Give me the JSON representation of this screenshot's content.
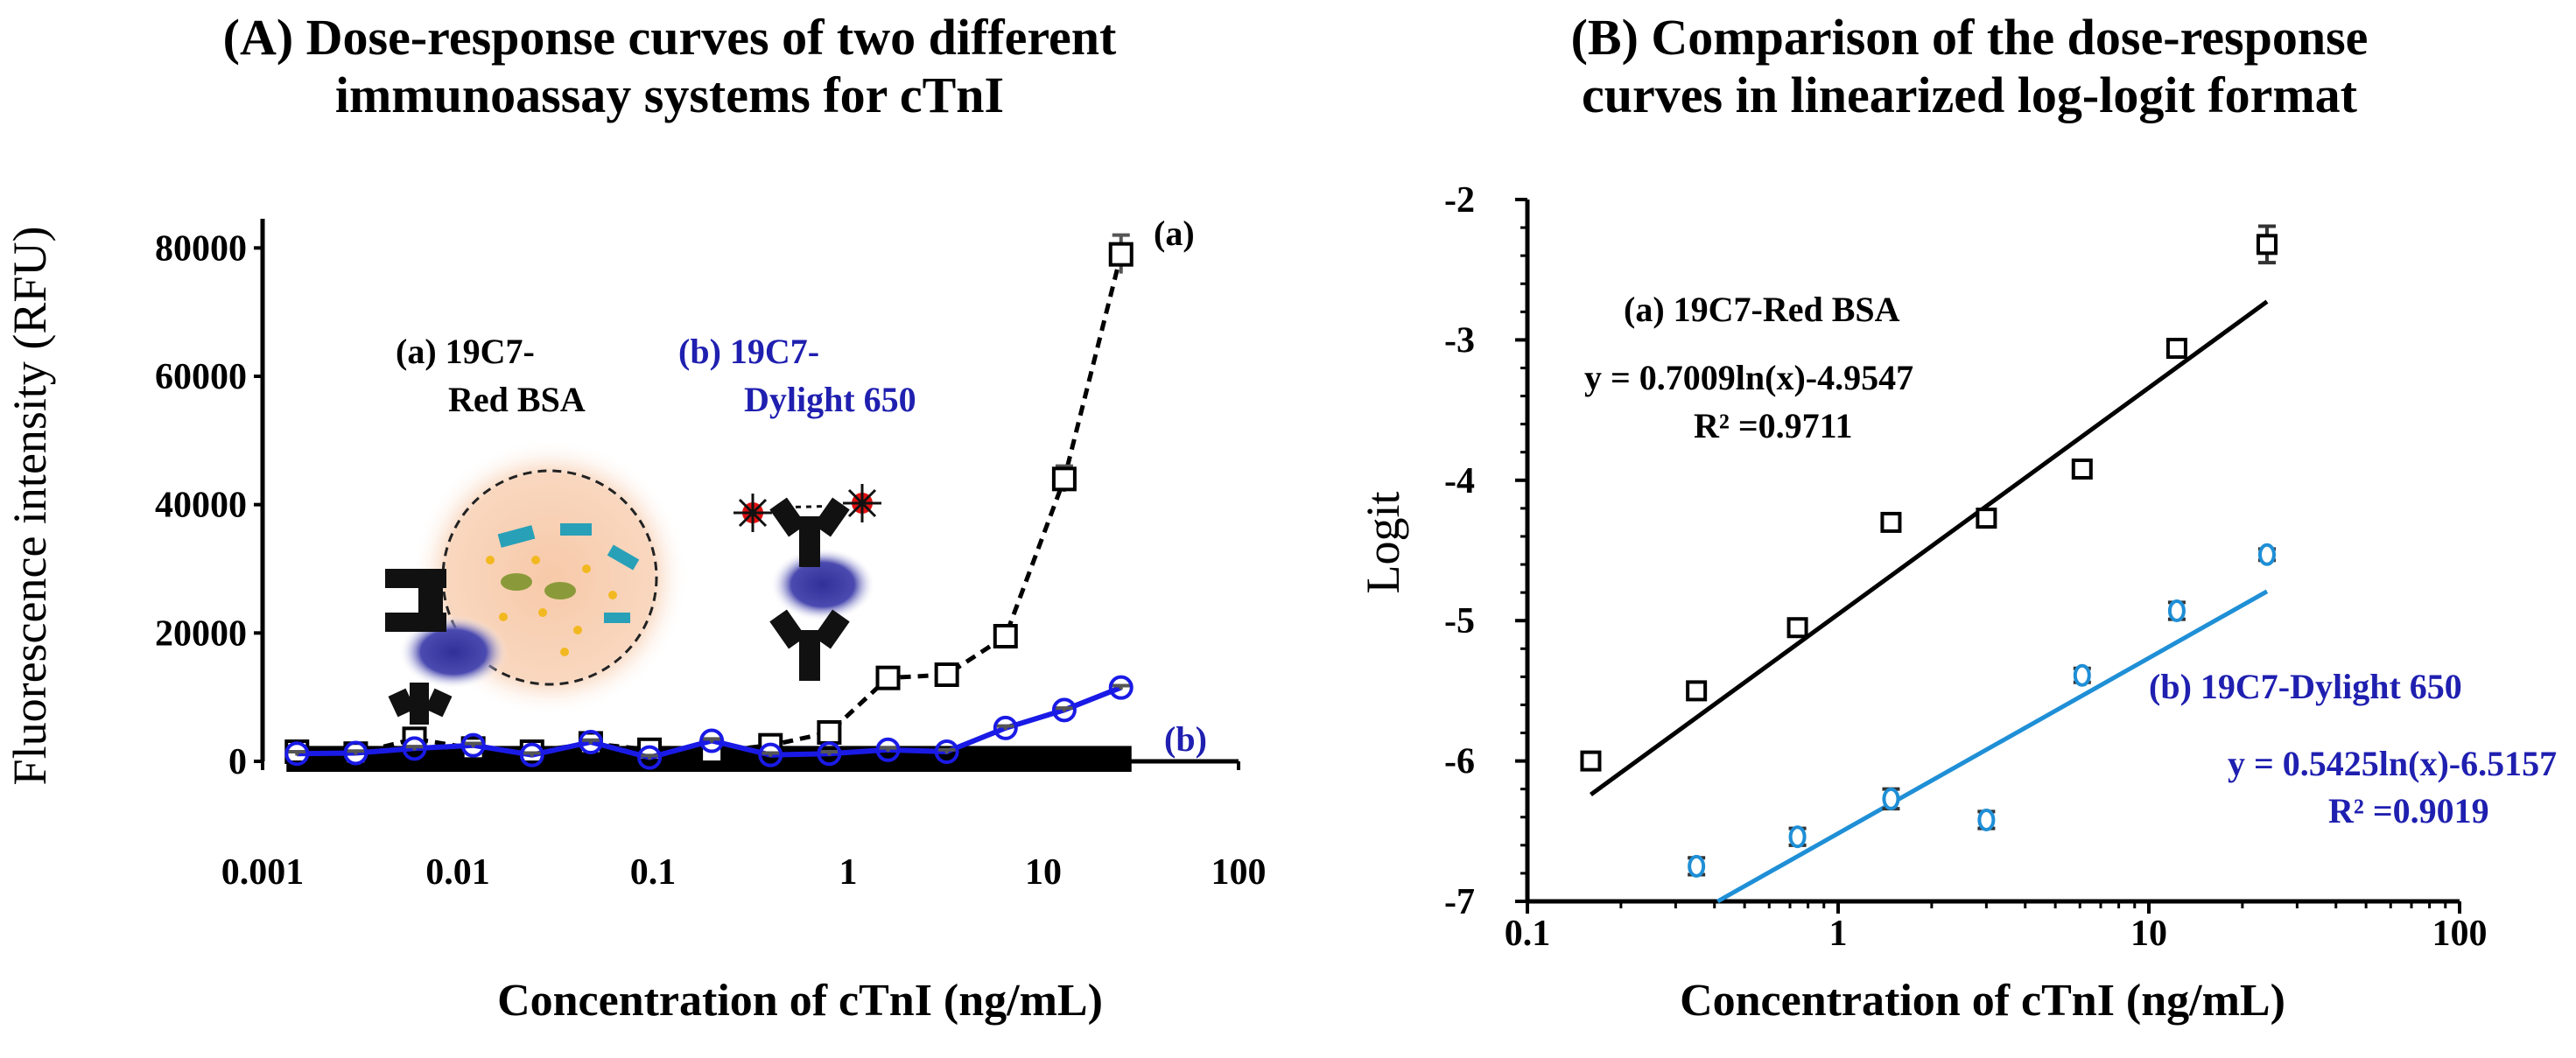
{
  "colors": {
    "series_a": "#000000",
    "series_b_left": "#1a1ae6",
    "series_b_right": "#1f8fd6",
    "label_b": "#1f1fb0"
  },
  "chart_data": [
    {
      "type": "line",
      "title": "(A) Dose-response curves of two different immunoassay systems for cTnI",
      "title_lines": [
        "(A) Dose-response curves of two different",
        "immunoassay systems for cTnI"
      ],
      "xlabel": "Concentration of cTnI (ng/mL)",
      "ylabel": "Fluorescence intensity (RFU)",
      "x_scale": "log",
      "xlim": [
        0.001,
        100
      ],
      "ylim": [
        0,
        90000
      ],
      "x_tick_labels": [
        "0.001",
        "0.01",
        "0.1",
        "1",
        "10",
        "100"
      ],
      "y_tick_labels": [
        "0",
        "20000",
        "40000",
        "60000",
        "80000"
      ],
      "series": [
        {
          "name": "(a) 19C7-Red BSA",
          "color": "#000000",
          "marker": "square",
          "curve_label": "(a)",
          "x": [
            0.0015,
            0.003,
            0.006,
            0.012,
            0.024,
            0.048,
            0.096,
            0.2,
            0.4,
            0.8,
            1.6,
            3.2,
            6.4,
            12.8,
            25
          ],
          "y": [
            1500,
            1200,
            3500,
            2000,
            1500,
            2800,
            1800,
            1500,
            2500,
            4500,
            13000,
            13500,
            19500,
            44000,
            79000
          ],
          "error": [
            400,
            500,
            400,
            400,
            400,
            400,
            400,
            400,
            400,
            400,
            1200,
            800,
            700,
            2000,
            3000
          ]
        },
        {
          "name": "(b) 19C7-Dylight 650",
          "color": "#1a1ae6",
          "marker": "circle",
          "curve_label": "(b)",
          "x": [
            0.0015,
            0.003,
            0.006,
            0.012,
            0.024,
            0.048,
            0.096,
            0.2,
            0.4,
            0.8,
            1.6,
            3.2,
            6.4,
            12.8,
            25
          ],
          "y": [
            1200,
            1300,
            2000,
            2500,
            1000,
            3000,
            600,
            3200,
            1000,
            1200,
            1800,
            1500,
            5200,
            8000,
            11500
          ],
          "error": [
            300,
            300,
            300,
            300,
            300,
            300,
            300,
            300,
            300,
            300,
            300,
            300,
            300,
            300,
            300
          ]
        }
      ],
      "annotations": {
        "label_a": [
          "(a) 19C7-",
          "Red BSA"
        ],
        "label_b": [
          "(b) 19C7-",
          "Dylight 650"
        ]
      }
    },
    {
      "type": "scatter",
      "title": "(B) Comparison of the dose-response curves in linearized log-logit format",
      "title_lines": [
        "(B) Comparison of the dose-response",
        "curves in linearized log-logit format"
      ],
      "xlabel": "Concentration of cTnI (ng/mL)",
      "ylabel": "Logit",
      "x_scale": "log",
      "xlim": [
        0.1,
        100
      ],
      "ylim": [
        -7,
        -2
      ],
      "x_tick_labels": [
        "0.1",
        "1",
        "10",
        "100"
      ],
      "y_tick_labels": [
        "-2",
        "-3",
        "-4",
        "-5",
        "-6",
        "-7"
      ],
      "series": [
        {
          "name": "(a) 19C7-Red BSA",
          "color": "#000000",
          "marker": "square",
          "x": [
            0.16,
            0.35,
            0.74,
            1.48,
            3.0,
            6.1,
            12.3,
            24.0
          ],
          "y": [
            -6.0,
            -5.5,
            -5.05,
            -4.3,
            -4.27,
            -3.92,
            -3.06,
            -2.32
          ],
          "error": [
            0.04,
            0.04,
            0.04,
            0.05,
            0.05,
            0.06,
            0.06,
            0.13
          ],
          "fit": {
            "slope": 0.7009,
            "intercept": -4.9547
          },
          "equation": "y = 0.7009ln(x)-4.9547",
          "r2": "R² =0.9711"
        },
        {
          "name": "(b) 19C7-Dylight 650",
          "color": "#1f8fd6",
          "marker": "circle",
          "x": [
            0.35,
            0.74,
            1.48,
            3.0,
            6.1,
            12.3,
            24.0
          ],
          "y": [
            -6.75,
            -6.54,
            -6.27,
            -6.42,
            -5.39,
            -4.93,
            -4.53
          ],
          "error": [
            0.06,
            0.06,
            0.07,
            0.06,
            0.05,
            0.06,
            0.04
          ],
          "fit": {
            "slope": 0.5425,
            "intercept": -6.5157
          },
          "equation": "y = 0.5425ln(x)-6.5157",
          "r2": "R² =0.9019"
        }
      ]
    }
  ]
}
